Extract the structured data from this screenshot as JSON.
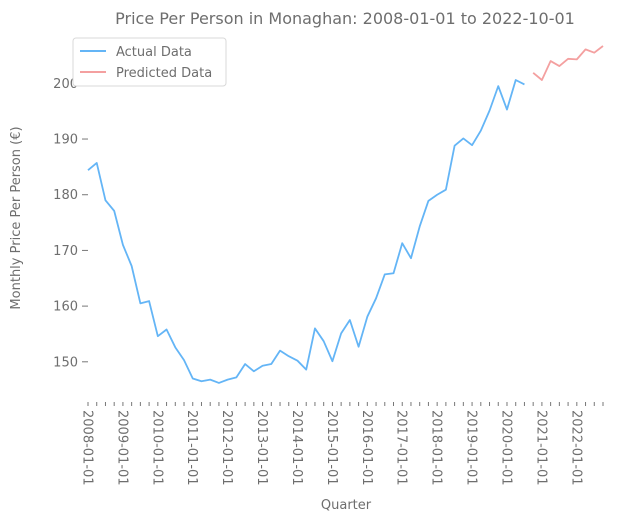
{
  "chart_data": {
    "type": "line",
    "title": "Price Per Person in Monaghan: 2008-01-01 to 2022-10-01",
    "xlabel": "Quarter",
    "ylabel": "Monthly Price Per Person (€)",
    "ylim": [
      143.5,
      208.5
    ],
    "yticks": [
      150,
      160,
      170,
      180,
      190,
      200
    ],
    "xticks": [
      "2008-01-01",
      "2009-01-01",
      "2010-01-01",
      "2011-01-01",
      "2012-01-01",
      "2013-01-01",
      "2014-01-01",
      "2015-01-01",
      "2016-01-01",
      "2017-01-01",
      "2018-01-01",
      "2019-01-01",
      "2020-01-01",
      "2021-01-01",
      "2022-01-01"
    ],
    "grid": false,
    "legend_position": "top-left",
    "series": [
      {
        "name": "Actual Data",
        "color": "#64b5f6",
        "x": [
          "2008-01-01",
          "2008-04-01",
          "2008-07-01",
          "2008-10-01",
          "2009-01-01",
          "2009-04-01",
          "2009-07-01",
          "2009-10-01",
          "2010-01-01",
          "2010-04-01",
          "2010-07-01",
          "2010-10-01",
          "2011-01-01",
          "2011-04-01",
          "2011-07-01",
          "2011-10-01",
          "2012-01-01",
          "2012-04-01",
          "2012-07-01",
          "2012-10-01",
          "2013-01-01",
          "2013-04-01",
          "2013-07-01",
          "2013-10-01",
          "2014-01-01",
          "2014-04-01",
          "2014-07-01",
          "2014-10-01",
          "2015-01-01",
          "2015-04-01",
          "2015-07-01",
          "2015-10-01",
          "2016-01-01",
          "2016-04-01",
          "2016-07-01",
          "2016-10-01",
          "2017-01-01",
          "2017-04-01",
          "2017-07-01",
          "2017-10-01",
          "2018-01-01",
          "2018-04-01",
          "2018-07-01",
          "2018-10-01",
          "2019-01-01",
          "2019-04-01",
          "2019-07-01",
          "2019-10-01",
          "2020-01-01",
          "2020-04-01"
        ],
        "values": [
          184.4,
          185.7,
          179.0,
          177.1,
          171.0,
          167.2,
          160.5,
          160.9,
          154.6,
          155.8,
          152.6,
          150.3,
          147.0,
          146.5,
          146.8,
          146.2,
          146.8,
          147.2,
          149.6,
          148.3,
          149.3,
          149.6,
          152.0,
          151.0,
          150.2,
          148.6,
          156.0,
          153.7,
          150.1,
          155.1,
          157.5,
          152.7,
          158.1,
          161.4,
          165.7,
          165.9,
          171.3,
          168.6,
          174.3,
          178.9,
          180.0,
          180.9,
          188.8,
          190.1,
          188.9,
          191.5,
          195.1,
          199.5,
          195.3,
          200.6
        ]
      },
      {
        "name": "Predicted Data",
        "color": "#f4a0a0",
        "x": [
          "2020-10-01",
          "2021-01-01",
          "2021-04-01",
          "2021-07-01",
          "2021-10-01",
          "2022-01-01",
          "2022-04-01",
          "2022-07-01",
          "2022-10-01"
        ],
        "values": [
          201.9,
          200.6,
          204.0,
          203.1,
          204.4,
          204.3,
          206.1,
          205.5,
          206.7
        ]
      }
    ],
    "actual_end": {
      "x": "2020-07-01",
      "value": 199.8
    }
  }
}
